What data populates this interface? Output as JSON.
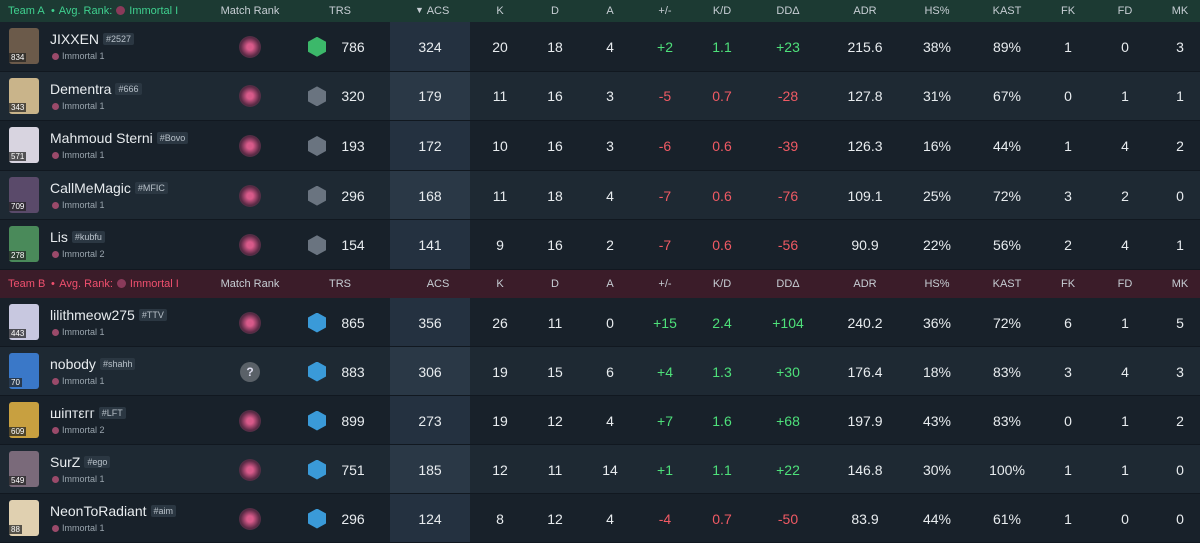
{
  "columns": [
    "Match Rank",
    "TRS",
    "ACS",
    "K",
    "D",
    "A",
    "+/-",
    "K/D",
    "DDΔ",
    "ADR",
    "HS%",
    "KAST",
    "FK",
    "FD",
    "MK"
  ],
  "teams": [
    {
      "name": "Team A",
      "avg_rank_label": "Avg. Rank:",
      "avg_rank": "Immortal I",
      "players": [
        {
          "name": "JIXXEN",
          "tag": "#2527",
          "level": "834",
          "rank": "Immortal 1",
          "stats": [
            "786",
            "324",
            "20",
            "18",
            "4",
            "+2",
            "1.1",
            "+23",
            "215.6",
            "38%",
            "89%",
            "1",
            "0",
            "3"
          ]
        },
        {
          "name": "Dementra",
          "tag": "#666",
          "level": "343",
          "rank": "Immortal 1",
          "stats": [
            "320",
            "179",
            "11",
            "16",
            "3",
            "-5",
            "0.7",
            "-28",
            "127.8",
            "31%",
            "67%",
            "0",
            "1",
            "1"
          ]
        },
        {
          "name": "Mahmoud Sterni",
          "tag": "#Bovo",
          "level": "571",
          "rank": "Immortal 1",
          "stats": [
            "193",
            "172",
            "10",
            "16",
            "3",
            "-6",
            "0.6",
            "-39",
            "126.3",
            "16%",
            "44%",
            "1",
            "4",
            "2"
          ]
        },
        {
          "name": "CallMeMagic",
          "tag": "#MFIC",
          "level": "709",
          "rank": "Immortal 1",
          "stats": [
            "296",
            "168",
            "11",
            "18",
            "4",
            "-7",
            "0.6",
            "-76",
            "109.1",
            "25%",
            "72%",
            "3",
            "2",
            "0"
          ]
        },
        {
          "name": "Lis",
          "tag": "#kubfu",
          "level": "278",
          "rank": "Immortal 2",
          "stats": [
            "154",
            "141",
            "9",
            "16",
            "2",
            "-7",
            "0.6",
            "-56",
            "90.9",
            "22%",
            "56%",
            "2",
            "4",
            "1"
          ]
        }
      ]
    },
    {
      "name": "Team B",
      "avg_rank_label": "Avg. Rank:",
      "avg_rank": "Immortal I",
      "players": [
        {
          "name": "lilithmeow275",
          "tag": "#TTV",
          "level": "443",
          "rank": "Immortal 1",
          "stats": [
            "865",
            "356",
            "26",
            "11",
            "0",
            "+15",
            "2.4",
            "+104",
            "240.2",
            "36%",
            "72%",
            "6",
            "1",
            "5"
          ]
        },
        {
          "name": "nobody",
          "tag": "#shahh",
          "level": "70",
          "rank": "Immortal 1",
          "match_rank": "?",
          "stats": [
            "883",
            "306",
            "19",
            "15",
            "6",
            "+4",
            "1.3",
            "+30",
            "176.4",
            "18%",
            "83%",
            "3",
            "4",
            "3"
          ]
        },
        {
          "name": "шiптεгг",
          "tag": "#LFT",
          "level": "609",
          "rank": "Immortal 2",
          "stats": [
            "899",
            "273",
            "19",
            "12",
            "4",
            "+7",
            "1.6",
            "+68",
            "197.9",
            "43%",
            "83%",
            "0",
            "1",
            "2"
          ]
        },
        {
          "name": "SurZ",
          "tag": "#ego",
          "level": "549",
          "rank": "Immortal 1",
          "stats": [
            "751",
            "185",
            "12",
            "11",
            "14",
            "+1",
            "1.1",
            "+22",
            "146.8",
            "30%",
            "100%",
            "1",
            "1",
            "0"
          ]
        },
        {
          "name": "NeonToRadiant",
          "tag": "#aim",
          "level": "88",
          "rank": "Immortal 1",
          "stats": [
            "296",
            "124",
            "8",
            "12",
            "4",
            "-4",
            "0.7",
            "-50",
            "83.9",
            "44%",
            "61%",
            "1",
            "0",
            "0"
          ]
        }
      ]
    }
  ]
}
